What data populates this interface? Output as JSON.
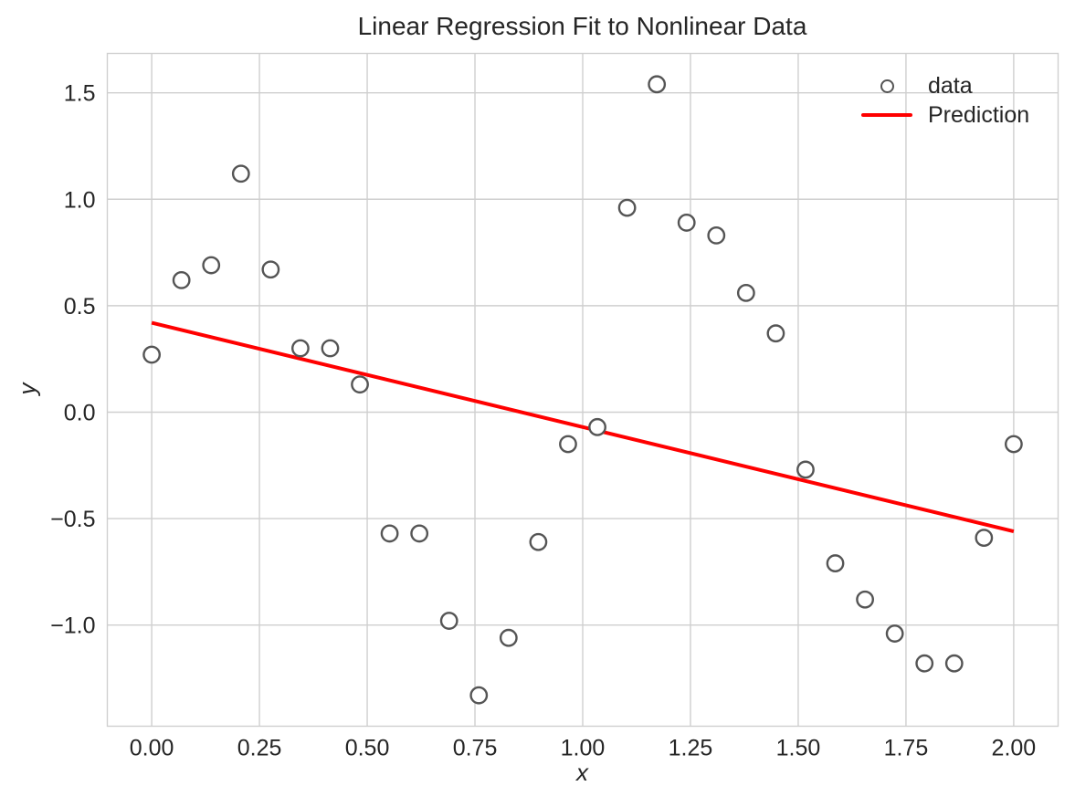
{
  "chart_data": {
    "type": "scatter",
    "title": "Linear Regression Fit to Nonlinear Data",
    "xlabel": "x",
    "ylabel": "y",
    "xlim": [
      -0.103,
      2.103
    ],
    "ylim": [
      -1.475,
      1.685
    ],
    "grid": true,
    "xticks": [
      0.0,
      0.25,
      0.5,
      0.75,
      1.0,
      1.25,
      1.5,
      1.75,
      2.0
    ],
    "xtick_labels": [
      "0.00",
      "0.25",
      "0.50",
      "0.75",
      "1.00",
      "1.25",
      "1.50",
      "1.75",
      "2.00"
    ],
    "yticks": [
      -1.0,
      -0.5,
      0.0,
      0.5,
      1.0,
      1.5
    ],
    "ytick_labels": [
      "−1.0",
      "−0.5",
      "0.0",
      "0.5",
      "1.0",
      "1.5"
    ],
    "legend": {
      "position": "upper right",
      "frame": false,
      "entries": [
        {
          "label": "data",
          "type": "marker"
        },
        {
          "label": "Prediction",
          "type": "line"
        }
      ]
    },
    "series": [
      {
        "name": "data",
        "type": "scatter",
        "marker": "open-circle",
        "edge_color": "#555555",
        "face_color": "#ffffff",
        "points": [
          [
            0.0,
            0.27
          ],
          [
            0.069,
            0.62
          ],
          [
            0.138,
            0.69
          ],
          [
            0.207,
            1.12
          ],
          [
            0.276,
            0.67
          ],
          [
            0.345,
            0.3
          ],
          [
            0.414,
            0.3
          ],
          [
            0.483,
            0.13
          ],
          [
            0.552,
            -0.57
          ],
          [
            0.621,
            -0.57
          ],
          [
            0.69,
            -0.98
          ],
          [
            0.759,
            -1.33
          ],
          [
            0.828,
            -1.06
          ],
          [
            0.897,
            -0.61
          ],
          [
            0.966,
            -0.15
          ],
          [
            1.034,
            -0.07
          ],
          [
            1.103,
            0.96
          ],
          [
            1.172,
            1.54
          ],
          [
            1.241,
            0.89
          ],
          [
            1.31,
            0.83
          ],
          [
            1.379,
            0.56
          ],
          [
            1.448,
            0.37
          ],
          [
            1.517,
            -0.27
          ],
          [
            1.586,
            -0.71
          ],
          [
            1.655,
            -0.88
          ],
          [
            1.724,
            -1.04
          ],
          [
            1.793,
            -1.18
          ],
          [
            1.862,
            -1.18
          ],
          [
            1.931,
            -0.59
          ],
          [
            2.0,
            -0.15
          ]
        ]
      },
      {
        "name": "Prediction",
        "type": "line",
        "color": "#ff0000",
        "points": [
          [
            0.0,
            0.42
          ],
          [
            2.0,
            -0.56
          ]
        ]
      }
    ],
    "style": {
      "background": "#ffffff",
      "grid_color": "#cfcfcf",
      "spine_color": "#cfcfcf",
      "text_color": "#262626",
      "marker_edge_color": "#555555",
      "prediction_color": "#ff0000"
    }
  }
}
